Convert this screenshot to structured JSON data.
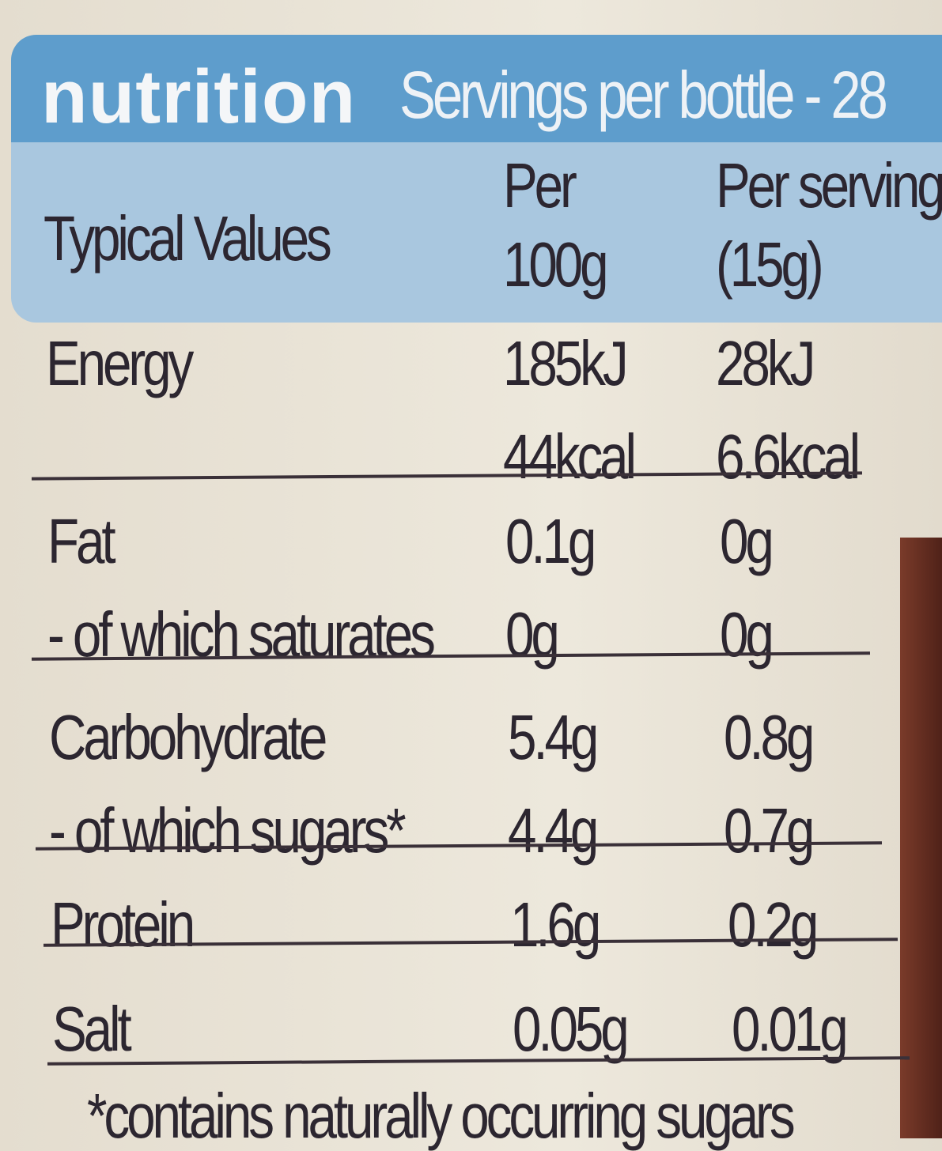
{
  "header": {
    "title": "nutrition",
    "servings": "Servings per bottle - 28"
  },
  "columns": {
    "label": "Typical Values",
    "per_100g": [
      "Per",
      "100g"
    ],
    "per_serving": [
      "Per serving",
      "(15g)"
    ]
  },
  "groups": [
    [
      {
        "label": "Energy",
        "per_100g": [
          "185kJ",
          "44kcal"
        ],
        "per_serving": [
          "28kJ",
          "6.6kcal"
        ]
      }
    ],
    [
      {
        "label": "Fat",
        "per_100g": [
          "0.1g"
        ],
        "per_serving": [
          "0g"
        ]
      },
      {
        "label": "- of which saturates",
        "per_100g": [
          "0g"
        ],
        "per_serving": [
          "0g"
        ]
      }
    ],
    [
      {
        "label": "Carbohydrate",
        "per_100g": [
          "5.4g"
        ],
        "per_serving": [
          "0.8g"
        ]
      },
      {
        "label": "- of which sugars*",
        "per_100g": [
          "4.4g"
        ],
        "per_serving": [
          "0.7g"
        ]
      }
    ],
    [
      {
        "label": "Protein",
        "per_100g": [
          "1.6g"
        ],
        "per_serving": [
          "0.2g"
        ]
      }
    ],
    [
      {
        "label": "Salt",
        "per_100g": [
          "0.05g"
        ],
        "per_serving": [
          "0.01g"
        ]
      }
    ]
  ],
  "footnote": "*contains naturally occurring sugars"
}
